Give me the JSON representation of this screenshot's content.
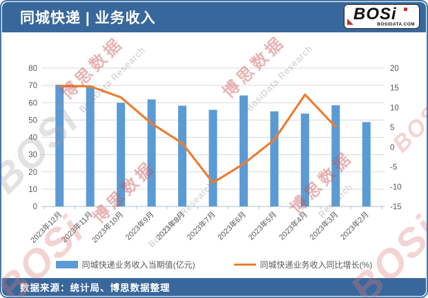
{
  "header": {
    "title": "同城快递 | 业务收入",
    "logo": {
      "text": "BOSi",
      "subtext": "BOSIDATA.COM"
    }
  },
  "chart_data": {
    "type": "bar",
    "categories": [
      "2023年12月",
      "2023年11月",
      "2023年10月",
      "2023年9月",
      "2023年8月",
      "2023年7月",
      "2023年6月",
      "2023年5月",
      "2023年4月",
      "2023年3月",
      "2023年2月"
    ],
    "series": [
      {
        "name": "同城快递业务收入当期值(亿元)",
        "type": "bar",
        "axis": "left",
        "color": "#5b9bd5",
        "values": [
          70.4,
          69.7,
          60.0,
          61.9,
          58.3,
          55.9,
          64.2,
          55.0,
          53.7,
          58.5,
          48.8
        ]
      },
      {
        "name": "同城快递业务收入同比增长(%)",
        "type": "line",
        "axis": "right",
        "color": "#ed7d31",
        "values": [
          15.5,
          15.4,
          12.6,
          6.0,
          1.0,
          -9.0,
          -4.2,
          1.9,
          13.3,
          5.1,
          null
        ]
      }
    ],
    "left_axis": {
      "min": 0,
      "max": 80,
      "step": 10,
      "ticks": [
        80,
        70,
        60,
        50,
        40,
        30,
        20,
        10,
        0
      ]
    },
    "right_axis": {
      "min": -15,
      "max": 20,
      "step": 5,
      "ticks": [
        20,
        15,
        10,
        5,
        0,
        -5,
        -10,
        -15
      ]
    },
    "grid": true,
    "legend_position": "bottom",
    "title": "同城快递 | 业务收入"
  },
  "legend": {
    "note": "labels bound from chart_data.series names"
  },
  "footer": {
    "source_label": "数据来源：统计局、博思数据整理"
  },
  "watermarks": {
    "cn": "博思数据",
    "en": "BosiData Research",
    "en_short": "Research",
    "logo": "BOSi"
  },
  "colors": {
    "header_bg": "#38689b",
    "bar": "#5b9bd5",
    "line": "#ed7d31",
    "grid": "#d9d9d9",
    "axis_text": "#595959"
  }
}
